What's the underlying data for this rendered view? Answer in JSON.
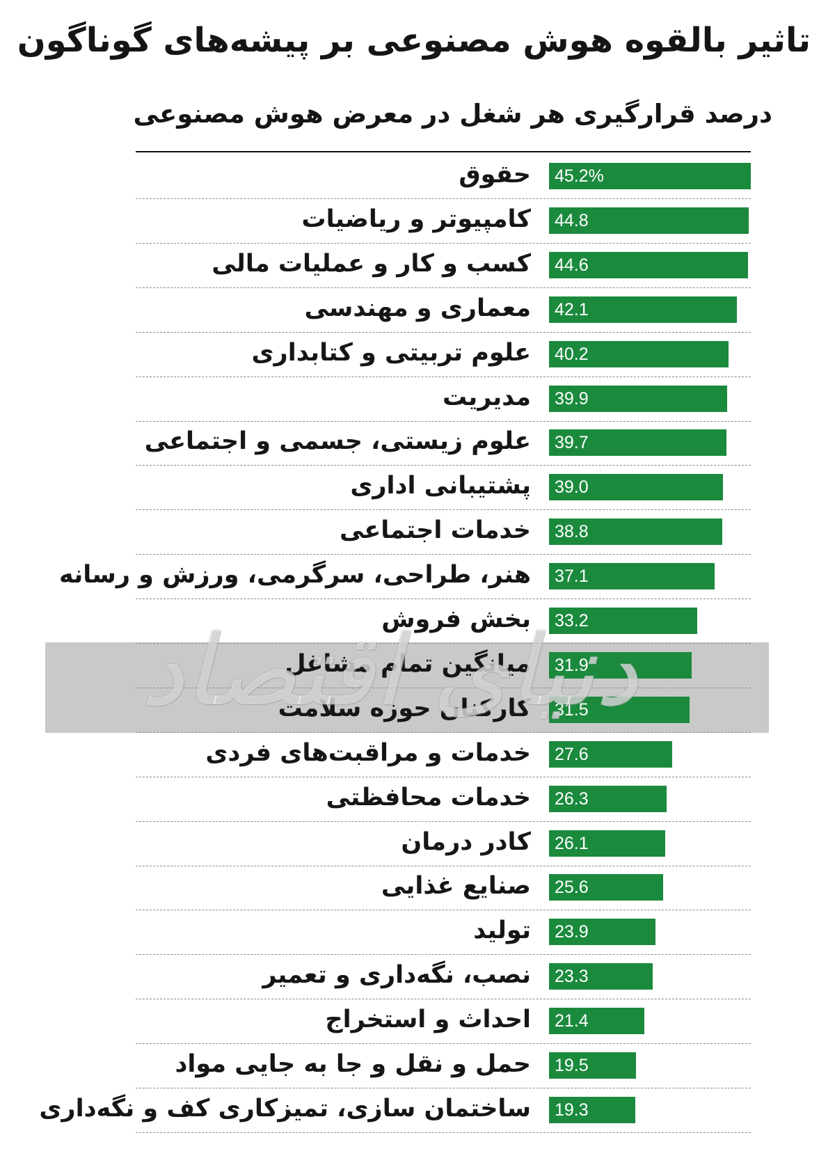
{
  "chart_data": {
    "type": "bar",
    "orientation": "horizontal",
    "title": "تاثیر بالقوه هوش مصنوعی بر پیشه‌های گوناگون",
    "subtitle": "درصد قرارگیری هر شغل در معرض هوش مصنوعی",
    "categories": [
      "حقوق",
      "کامپیوتر و ریاضیات",
      "کسب و کار و عملیات مالی",
      "معماری و مهندسی",
      "علوم تربیتی و کتابداری",
      "مدیریت",
      "علوم زیستی، جسمی و اجتماعی",
      "پشتیبانی اداری",
      "خدمات اجتماعی",
      "هنر، طراحی، سرگرمی، ورزش و رسانه",
      "بخش فروش",
      "میانگین تمام مشاغل",
      "کارکنان حوزه سلامت",
      "خدمات و مراقبت‌های فردی",
      "خدمات محافظتی",
      "کادر درمان",
      "صنایع غذایی",
      "تولید",
      "نصب، نگه‌داری و تعمیر",
      "احداث و استخراج",
      "حمل و نقل و جا به جایی مواد",
      "ساختمان سازی، تمیزکاری کف و نگه‌داری"
    ],
    "values": [
      45.2,
      44.8,
      44.6,
      42.1,
      40.2,
      39.9,
      39.7,
      39.0,
      38.8,
      37.1,
      33.2,
      31.9,
      31.5,
      27.6,
      26.3,
      26.1,
      25.6,
      23.9,
      23.3,
      21.4,
      19.5,
      19.3
    ],
    "value_labels": [
      "45.2%",
      "44.8",
      "44.6",
      "42.1",
      "40.2",
      "39.9",
      "39.7",
      "39.0",
      "38.8",
      "37.1",
      "33.2",
      "31.9",
      "31.5",
      "27.6",
      "26.3",
      "26.1",
      "25.6",
      "23.9",
      "23.3",
      "21.4",
      "19.5",
      "19.3"
    ],
    "grid": false,
    "legend": "none"
  },
  "colors": {
    "bar": "#1b8a3d",
    "value_text": "#ffffff",
    "label_text": "#161616",
    "watermark_band": "#c9c9c9"
  },
  "watermark": {
    "text": "دنیای اقتصاد"
  }
}
